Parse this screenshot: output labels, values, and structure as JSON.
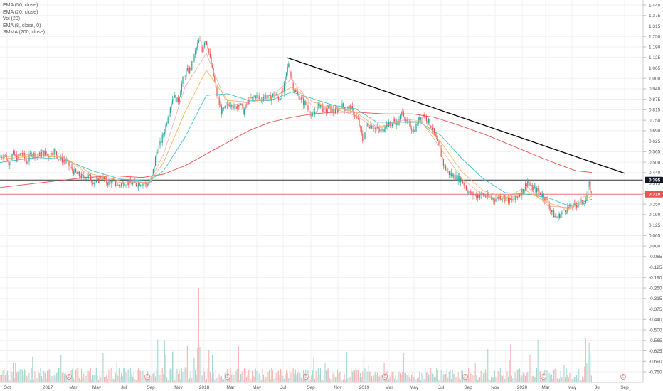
{
  "legend": [
    "EMA (50, close)",
    "EMA (20, close)",
    "Vol (20)",
    "EMA (8, close, 0)",
    "SMMA (200, close)"
  ],
  "colors": {
    "up": "#26a69a",
    "down": "#ef5350",
    "ema50": "#3ebfc5",
    "ema20": "#f2b14a",
    "ema8": "#f4a0a0",
    "smma200": "#e85050",
    "trendline": "#000000",
    "hline_black": "#333333",
    "hline_red": "#ef5350",
    "vol_up": "#a5d6d2",
    "vol_down": "#f5b5b3"
  },
  "chart_data": {
    "type": "candlestick",
    "y_axis_ticks": [
      "1.440",
      "1.375",
      "1.315",
      "1.250",
      "1.190",
      "1.125",
      "1.065",
      "1.000",
      "0.940",
      "0.875",
      "0.815",
      "0.750",
      "0.690",
      "0.625",
      "0.565",
      "0.500",
      "0.440",
      "0.375",
      "0.315",
      "0.250",
      "0.190",
      "0.125",
      "0.065",
      "0.000",
      "-0.065",
      "-0.125",
      "-0.190",
      "-0.250",
      "-0.315",
      "-0.375",
      "-0.440",
      "-0.500",
      "-0.565",
      "-0.625",
      "-0.690",
      "-0.750"
    ],
    "x_axis_labels": [
      "Oct",
      "2017",
      "Mar",
      "May",
      "Jul",
      "Sep",
      "Nov",
      "2018",
      "Mar",
      "May",
      "Jul",
      "Sep",
      "Nov",
      "2019",
      "Mar",
      "May",
      "Jul",
      "Sep",
      "Nov",
      "2020",
      "Mar",
      "May",
      "Jul",
      "Sep"
    ],
    "price_tags": [
      {
        "label": "0.395",
        "value": 0.395,
        "style": "black"
      },
      {
        "label": "0.310",
        "value": 0.31,
        "style": "red"
      }
    ],
    "horizontal_lines": [
      {
        "value": 0.395,
        "color": "black"
      },
      {
        "value": 0.31,
        "color": "red"
      }
    ],
    "trendline": {
      "from": {
        "date": "2018-07",
        "value": 1.125
      },
      "to": {
        "date": "2020-09",
        "value": 0.435
      }
    },
    "event_markers": [
      "E",
      "E",
      "E",
      "E",
      "E",
      "E",
      "E",
      "E"
    ],
    "price_path": [
      [
        0,
        0.53
      ],
      [
        6,
        0.55
      ],
      [
        12,
        0.5
      ],
      [
        18,
        0.55
      ],
      [
        24,
        0.52
      ],
      [
        30,
        0.56
      ],
      [
        38,
        0.5
      ],
      [
        44,
        0.56
      ],
      [
        52,
        0.53
      ],
      [
        60,
        0.56
      ],
      [
        68,
        0.54
      ],
      [
        76,
        0.57
      ],
      [
        84,
        0.52
      ],
      [
        92,
        0.51
      ],
      [
        100,
        0.46
      ],
      [
        108,
        0.43
      ],
      [
        116,
        0.41
      ],
      [
        124,
        0.42
      ],
      [
        130,
        0.39
      ],
      [
        136,
        0.38
      ],
      [
        142,
        0.42
      ],
      [
        150,
        0.38
      ],
      [
        158,
        0.39
      ],
      [
        166,
        0.36
      ],
      [
        174,
        0.38
      ],
      [
        182,
        0.38
      ],
      [
        190,
        0.37
      ],
      [
        198,
        0.38
      ],
      [
        206,
        0.37
      ],
      [
        212,
        0.39
      ],
      [
        216,
        0.46
      ],
      [
        220,
        0.56
      ],
      [
        226,
        0.62
      ],
      [
        232,
        0.7
      ],
      [
        238,
        0.82
      ],
      [
        244,
        0.9
      ],
      [
        250,
        0.86
      ],
      [
        256,
        0.98
      ],
      [
        262,
        1.04
      ],
      [
        268,
        1.06
      ],
      [
        272,
        1.12
      ],
      [
        276,
        1.18
      ],
      [
        280,
        1.23
      ],
      [
        284,
        1.17
      ],
      [
        288,
        1.24
      ],
      [
        292,
        1.2
      ],
      [
        296,
        1.1
      ],
      [
        300,
        1.02
      ],
      [
        304,
        0.92
      ],
      [
        308,
        0.85
      ],
      [
        312,
        0.8
      ],
      [
        318,
        0.83
      ],
      [
        324,
        0.86
      ],
      [
        330,
        0.82
      ],
      [
        336,
        0.86
      ],
      [
        342,
        0.8
      ],
      [
        348,
        0.86
      ],
      [
        354,
        0.88
      ],
      [
        360,
        0.9
      ],
      [
        366,
        0.87
      ],
      [
        372,
        0.9
      ],
      [
        378,
        0.88
      ],
      [
        386,
        0.91
      ],
      [
        392,
        0.88
      ],
      [
        398,
        0.92
      ],
      [
        402,
        1.02
      ],
      [
        406,
        1.1
      ],
      [
        410,
        0.98
      ],
      [
        414,
        0.93
      ],
      [
        420,
        0.9
      ],
      [
        426,
        0.86
      ],
      [
        432,
        0.84
      ],
      [
        438,
        0.76
      ],
      [
        444,
        0.82
      ],
      [
        450,
        0.85
      ],
      [
        456,
        0.8
      ],
      [
        462,
        0.83
      ],
      [
        468,
        0.8
      ],
      [
        474,
        0.81
      ],
      [
        480,
        0.84
      ],
      [
        486,
        0.82
      ],
      [
        492,
        0.83
      ],
      [
        498,
        0.79
      ],
      [
        504,
        0.74
      ],
      [
        510,
        0.63
      ],
      [
        516,
        0.73
      ],
      [
        522,
        0.72
      ],
      [
        530,
        0.7
      ],
      [
        536,
        0.68
      ],
      [
        542,
        0.73
      ],
      [
        548,
        0.72
      ],
      [
        554,
        0.75
      ],
      [
        560,
        0.73
      ],
      [
        566,
        0.82
      ],
      [
        570,
        0.74
      ],
      [
        576,
        0.72
      ],
      [
        582,
        0.69
      ],
      [
        588,
        0.75
      ],
      [
        594,
        0.79
      ],
      [
        600,
        0.76
      ],
      [
        606,
        0.72
      ],
      [
        612,
        0.65
      ],
      [
        618,
        0.58
      ],
      [
        624,
        0.48
      ],
      [
        630,
        0.44
      ],
      [
        636,
        0.42
      ],
      [
        642,
        0.41
      ],
      [
        648,
        0.4
      ],
      [
        654,
        0.36
      ],
      [
        658,
        0.32
      ],
      [
        664,
        0.31
      ],
      [
        670,
        0.3
      ],
      [
        676,
        0.31
      ],
      [
        682,
        0.3
      ],
      [
        688,
        0.29
      ],
      [
        694,
        0.28
      ],
      [
        700,
        0.29
      ],
      [
        706,
        0.3
      ],
      [
        712,
        0.28
      ],
      [
        718,
        0.27
      ],
      [
        724,
        0.28
      ],
      [
        730,
        0.31
      ],
      [
        736,
        0.34
      ],
      [
        742,
        0.39
      ],
      [
        746,
        0.35
      ],
      [
        752,
        0.34
      ],
      [
        758,
        0.32
      ],
      [
        764,
        0.3
      ],
      [
        770,
        0.26
      ],
      [
        776,
        0.2
      ],
      [
        782,
        0.17
      ],
      [
        788,
        0.19
      ],
      [
        794,
        0.22
      ],
      [
        800,
        0.23
      ],
      [
        806,
        0.24
      ],
      [
        812,
        0.25
      ],
      [
        818,
        0.26
      ],
      [
        824,
        0.28
      ],
      [
        828,
        0.37
      ],
      [
        832,
        0.3
      ]
    ],
    "smma200_path": [
      [
        0,
        0.35
      ],
      [
        40,
        0.37
      ],
      [
        80,
        0.39
      ],
      [
        120,
        0.41
      ],
      [
        160,
        0.42
      ],
      [
        200,
        0.41
      ],
      [
        230,
        0.43
      ],
      [
        260,
        0.48
      ],
      [
        290,
        0.55
      ],
      [
        320,
        0.62
      ],
      [
        350,
        0.69
      ],
      [
        380,
        0.74
      ],
      [
        410,
        0.77
      ],
      [
        440,
        0.79
      ],
      [
        470,
        0.8
      ],
      [
        500,
        0.8
      ],
      [
        540,
        0.79
      ],
      [
        580,
        0.79
      ],
      [
        610,
        0.77
      ],
      [
        640,
        0.73
      ],
      [
        680,
        0.67
      ],
      [
        720,
        0.6
      ],
      [
        760,
        0.53
      ],
      [
        790,
        0.48
      ],
      [
        810,
        0.45
      ],
      [
        832,
        0.44
      ]
    ],
    "ema50_path": [
      [
        0,
        0.5
      ],
      [
        50,
        0.53
      ],
      [
        90,
        0.52
      ],
      [
        130,
        0.45
      ],
      [
        170,
        0.4
      ],
      [
        210,
        0.39
      ],
      [
        230,
        0.45
      ],
      [
        260,
        0.65
      ],
      [
        290,
        0.9
      ],
      [
        320,
        0.91
      ],
      [
        350,
        0.87
      ],
      [
        380,
        0.87
      ],
      [
        410,
        0.92
      ],
      [
        440,
        0.88
      ],
      [
        470,
        0.84
      ],
      [
        500,
        0.82
      ],
      [
        530,
        0.74
      ],
      [
        560,
        0.74
      ],
      [
        590,
        0.74
      ],
      [
        620,
        0.66
      ],
      [
        650,
        0.52
      ],
      [
        680,
        0.4
      ],
      [
        710,
        0.32
      ],
      [
        740,
        0.31
      ],
      [
        770,
        0.29
      ],
      [
        800,
        0.24
      ],
      [
        832,
        0.28
      ]
    ],
    "ema20_path": [
      [
        0,
        0.52
      ],
      [
        50,
        0.54
      ],
      [
        90,
        0.53
      ],
      [
        130,
        0.43
      ],
      [
        170,
        0.39
      ],
      [
        210,
        0.38
      ],
      [
        230,
        0.5
      ],
      [
        260,
        0.8
      ],
      [
        290,
        1.05
      ],
      [
        320,
        0.87
      ],
      [
        350,
        0.86
      ],
      [
        380,
        0.88
      ],
      [
        410,
        0.95
      ],
      [
        440,
        0.86
      ],
      [
        470,
        0.83
      ],
      [
        500,
        0.8
      ],
      [
        530,
        0.71
      ],
      [
        560,
        0.74
      ],
      [
        590,
        0.75
      ],
      [
        620,
        0.62
      ],
      [
        650,
        0.44
      ],
      [
        680,
        0.33
      ],
      [
        710,
        0.29
      ],
      [
        740,
        0.33
      ],
      [
        770,
        0.26
      ],
      [
        800,
        0.22
      ],
      [
        832,
        0.3
      ]
    ],
    "ema8_path": [
      [
        0,
        0.53
      ],
      [
        50,
        0.55
      ],
      [
        90,
        0.53
      ],
      [
        130,
        0.41
      ],
      [
        170,
        0.38
      ],
      [
        210,
        0.38
      ],
      [
        230,
        0.55
      ],
      [
        260,
        0.95
      ],
      [
        290,
        1.15
      ],
      [
        320,
        0.84
      ],
      [
        350,
        0.86
      ],
      [
        380,
        0.89
      ],
      [
        410,
        1.0
      ],
      [
        440,
        0.83
      ],
      [
        470,
        0.82
      ],
      [
        500,
        0.78
      ],
      [
        530,
        0.7
      ],
      [
        560,
        0.75
      ],
      [
        590,
        0.76
      ],
      [
        620,
        0.58
      ],
      [
        650,
        0.4
      ],
      [
        680,
        0.3
      ],
      [
        710,
        0.28
      ],
      [
        740,
        0.36
      ],
      [
        770,
        0.24
      ],
      [
        800,
        0.23
      ],
      [
        832,
        0.33
      ]
    ]
  }
}
